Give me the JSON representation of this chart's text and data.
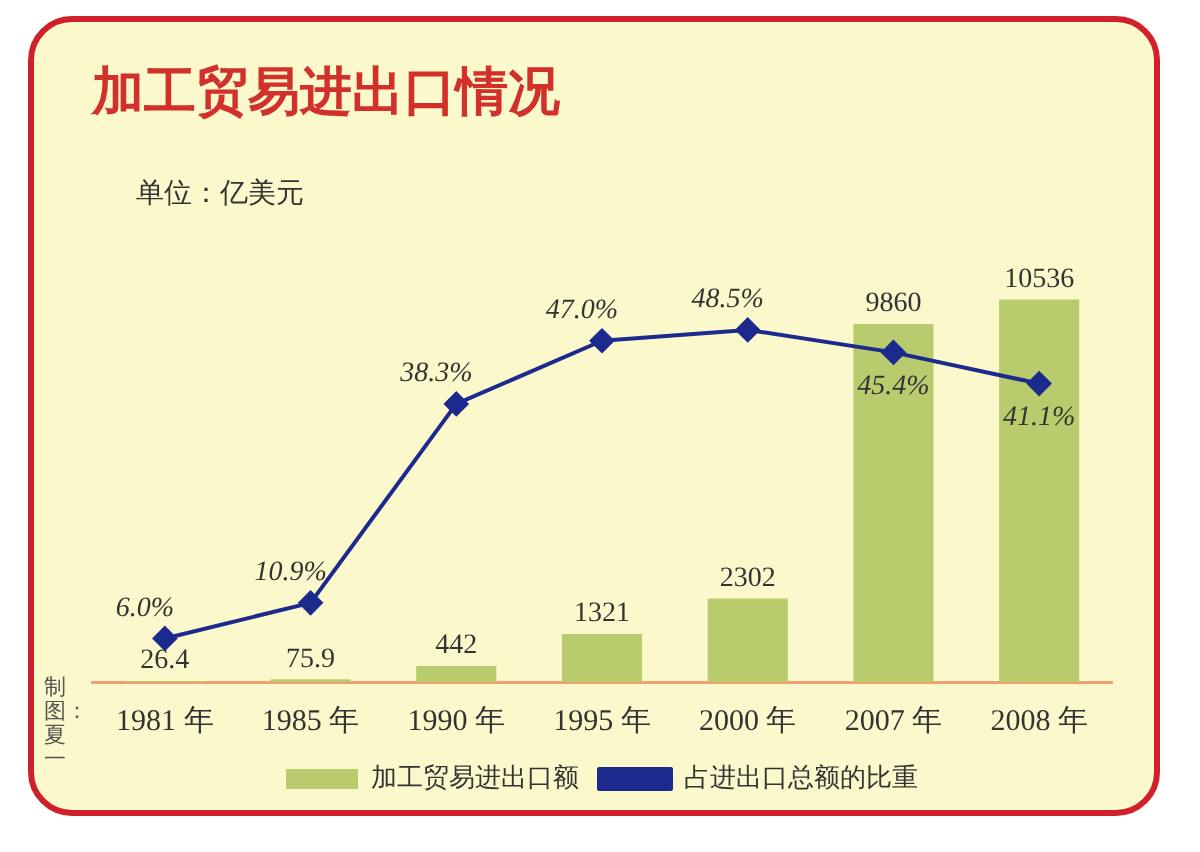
{
  "chart_data": {
    "type": "bar",
    "title": "加工贸易进出口情况",
    "categories": [
      "1981 年",
      "1985 年",
      "1990 年",
      "1995 年",
      "2000 年",
      "2007 年",
      "2008 年"
    ],
    "series": [
      {
        "name": "加工贸易进出口额",
        "color": "#b8cc6e",
        "values": [
          26.4,
          75.9,
          442,
          1321,
          2302,
          9860,
          10536
        ],
        "value_labels": [
          "26.4",
          "75.9",
          "442",
          "1321",
          "2302",
          "9860",
          "10536"
        ]
      },
      {
        "name": "占进出口总额的比重",
        "type": "line",
        "axis": "y2",
        "color": "#1c2a8e",
        "values": [
          6.0,
          10.9,
          38.3,
          47.0,
          48.5,
          45.4,
          41.1
        ],
        "value_labels": [
          "6.0%",
          "10.9%",
          "38.3%",
          "47.0%",
          "48.5%",
          "45.4%",
          "41.1%"
        ]
      }
    ],
    "tick_labels": "x",
    "legend": "bottom",
    "marker": "diamond",
    "line_style": "solid",
    "annotations": [
      "单位：亿美元",
      "制图：夏一"
    ]
  }
}
